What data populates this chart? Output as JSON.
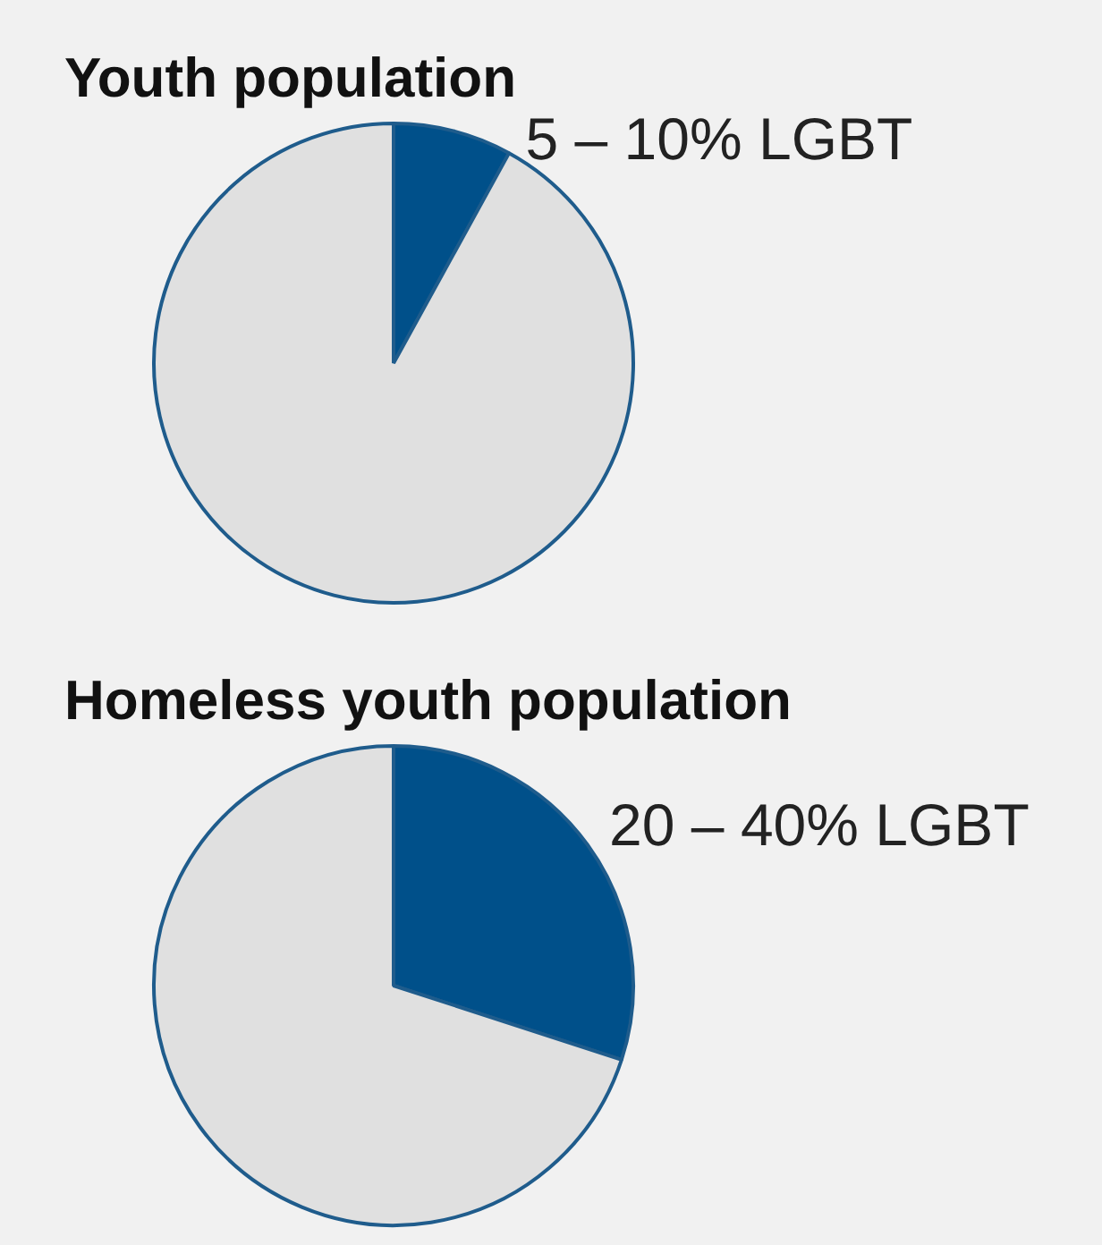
{
  "chart_data": [
    {
      "type": "pie",
      "title": "Youth population",
      "categories": [
        "5 – 10% LGBT",
        null
      ],
      "values": [
        8,
        92
      ],
      "colors": [
        "#00508a",
        "#e0e0e0"
      ],
      "legend": false
    },
    {
      "type": "pie",
      "title": "Homeless youth population",
      "categories": [
        "20 – 40% LGBT",
        null
      ],
      "values": [
        30,
        70
      ],
      "colors": [
        "#00508a",
        "#e0e0e0"
      ],
      "legend": false
    }
  ]
}
